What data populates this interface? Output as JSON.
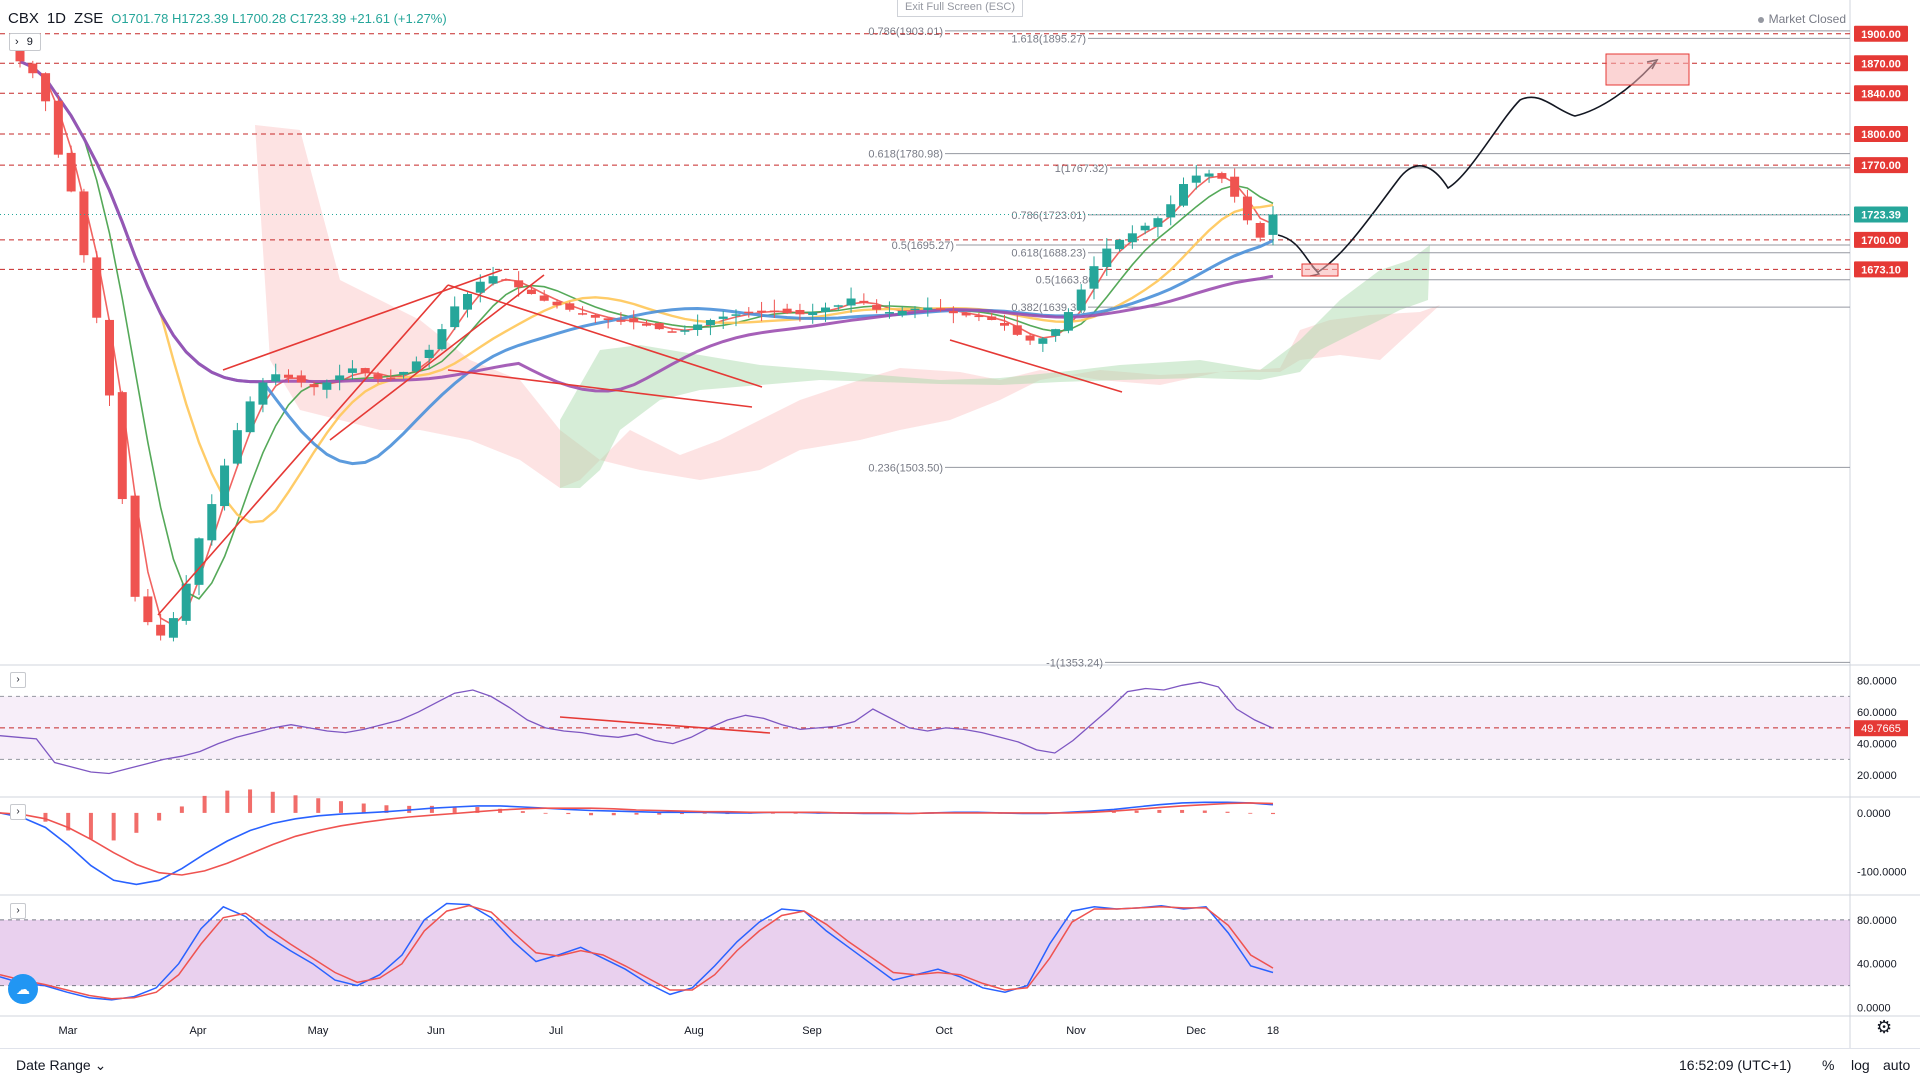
{
  "header": {
    "symbol": "CBX",
    "interval": "1D",
    "exchange": "ZSE",
    "open": "O1701.78",
    "high": "H1723.39",
    "low": "L1700.28",
    "close": "C1723.39",
    "change": "+21.61 (+1.27%)",
    "indicator_count": "9"
  },
  "exit_fullscreen": "Exit Full Screen (ESC)",
  "market_status": "Market Closed",
  "bottom": {
    "date_range": "Date Range",
    "clock": "16:52:09 (UTC+1)",
    "percent": "%",
    "log": "log",
    "auto": "auto"
  },
  "colors": {
    "up": "#26a69a",
    "down": "#ef5350",
    "ma_fast": "#ef5350",
    "ma_mid": "#43a047",
    "ma_slow": "#ffc658",
    "ma_100": "#4a90d9",
    "ma_200": "#9c4fb0",
    "price_label_red": "#e53935",
    "price_label_green": "#26a69a",
    "rsi": "#7e57c2",
    "macd": "#2962ff",
    "signal": "#ef5350",
    "stoch_k": "#2962ff",
    "stoch_d": "#ef5350"
  },
  "chart_data": [
    {
      "type": "candlestick",
      "title": "CBX 1D ZSE",
      "x_labels": [
        "Mar",
        "Apr",
        "May",
        "Jun",
        "Jul",
        "Aug",
        "Sep",
        "Oct",
        "Nov",
        "Dec",
        "18"
      ],
      "y_scale": "log",
      "ylim": [
        1355,
        1935
      ],
      "close_series": [
        1872,
        1860,
        1832,
        1780,
        1745,
        1686,
        1630,
        1563,
        1478,
        1402,
        1383,
        1373,
        1386,
        1412,
        1447,
        1474,
        1505,
        1534,
        1558,
        1574,
        1581,
        1578,
        1574,
        1570,
        1574,
        1580,
        1586,
        1582,
        1577,
        1578,
        1583,
        1592,
        1602,
        1620,
        1640,
        1651,
        1662,
        1667,
        1663,
        1657,
        1651,
        1645,
        1641,
        1637,
        1633,
        1630,
        1628,
        1627,
        1626,
        1623,
        1620,
        1618,
        1619,
        1624,
        1628,
        1631,
        1633,
        1635,
        1636,
        1636,
        1634,
        1633,
        1635,
        1639,
        1641,
        1647,
        1643,
        1637,
        1635,
        1636,
        1638,
        1639,
        1637,
        1634,
        1632,
        1631,
        1628,
        1623,
        1615,
        1610,
        1612,
        1620,
        1635,
        1655,
        1676,
        1692,
        1700,
        1706,
        1713,
        1720,
        1733,
        1752,
        1760,
        1762,
        1757,
        1740,
        1718,
        1702,
        1723.39
      ],
      "fib_levels": [
        {
          "label": "0.786(1903.01)",
          "value": 1903.01
        },
        {
          "label": "1.618(1895.27)",
          "value": 1895.27
        },
        {
          "label": "0.618(1780.98)",
          "value": 1780.98
        },
        {
          "label": "1(1767.32)",
          "value": 1767.32
        },
        {
          "label": "0.786(1723.01)",
          "value": 1723.01
        },
        {
          "label": "0.5(1695.27)",
          "value": 1695.27
        },
        {
          "label": "0.618(1688.23)",
          "value": 1688.23
        },
        {
          "label": "0.5(1663.80)",
          "value": 1663.8
        },
        {
          "label": "0.382(1639.37)",
          "value": 1639.37
        },
        {
          "label": "0.236(1503.50)",
          "value": 1503.5
        },
        {
          "label": "-1(1353.24)",
          "value": 1353.24
        }
      ],
      "horizontal_levels": [
        {
          "label": "1900.00",
          "value": 1900.0
        },
        {
          "label": "1870.00",
          "value": 1870.0
        },
        {
          "label": "1840.00",
          "value": 1840.0
        },
        {
          "label": "1800.00",
          "value": 1800.0
        },
        {
          "label": "1770.00",
          "value": 1770.0
        },
        {
          "label": "1700.00",
          "value": 1700.0
        },
        {
          "label": "1673.10",
          "value": 1673.1
        }
      ],
      "last_price": {
        "label": "1723.39",
        "value": 1723.39
      }
    },
    {
      "type": "line",
      "title": "RSI",
      "y_ticks": [
        "80.0000",
        "60.0000",
        "40.0000",
        "20.0000"
      ],
      "ylim": [
        8,
        88
      ],
      "band": [
        30,
        70
      ],
      "midline": 50,
      "last_value_label": "49.7665",
      "values": [
        45,
        44,
        43,
        28,
        25,
        22,
        21,
        24,
        27,
        30,
        32,
        35,
        40,
        44,
        47,
        50,
        52,
        50,
        48,
        47,
        49,
        52,
        55,
        60,
        66,
        72,
        74,
        70,
        63,
        55,
        50,
        48,
        47,
        45,
        44,
        46,
        42,
        40,
        44,
        50,
        55,
        58,
        56,
        52,
        49,
        50,
        51,
        54,
        62,
        56,
        50,
        48,
        50,
        49,
        47,
        44,
        41,
        36,
        34,
        42,
        52,
        62,
        73,
        75,
        74,
        77,
        79,
        76,
        62,
        55,
        49.77
      ]
    },
    {
      "type": "line",
      "title": "MACD",
      "y_ticks": [
        "0.0000",
        "-100.0000"
      ],
      "ylim": [
        -135,
        22
      ],
      "macd": [
        0,
        -8,
        -25,
        -55,
        -90,
        -115,
        -122,
        -115,
        -95,
        -70,
        -48,
        -30,
        -18,
        -10,
        -5,
        -2,
        0,
        2,
        5,
        8,
        10,
        12,
        12,
        10,
        8,
        6,
        4,
        3,
        2,
        1,
        1,
        1,
        0,
        0,
        1,
        1,
        0,
        0,
        -1,
        -1,
        -1,
        0,
        1,
        1,
        0,
        -1,
        -1,
        1,
        3,
        6,
        10,
        14,
        17,
        18,
        18,
        17,
        14
      ],
      "signal": [
        0,
        -3,
        -10,
        -25,
        -45,
        -68,
        -88,
        -102,
        -106,
        -99,
        -86,
        -70,
        -54,
        -40,
        -30,
        -22,
        -16,
        -11,
        -7,
        -4,
        -1,
        2,
        5,
        7,
        8,
        8,
        8,
        7,
        5,
        4,
        3,
        2,
        2,
        1,
        1,
        1,
        1,
        0,
        0,
        0,
        -1,
        0,
        0,
        0,
        0,
        0,
        0,
        0,
        1,
        3,
        6,
        9,
        12,
        14,
        16,
        17,
        16
      ],
      "histogram": [
        0,
        -5,
        -15,
        -30,
        -45,
        -47,
        -34,
        -13,
        11,
        29,
        38,
        40,
        36,
        30,
        25,
        20,
        16,
        13,
        12,
        12,
        11,
        10,
        7,
        3,
        0,
        -2,
        -4,
        -4,
        -3,
        -3,
        -2,
        -1,
        -2,
        -1,
        0,
        0,
        -1,
        0,
        -1,
        -1,
        0,
        0,
        1,
        1,
        0,
        -1,
        -1,
        1,
        2,
        3,
        4,
        5,
        5,
        4,
        2,
        0,
        -2
      ]
    },
    {
      "type": "line",
      "title": "Stochastic",
      "y_ticks": [
        "80.0000",
        "40.0000",
        "0.0000"
      ],
      "ylim": [
        -5,
        100
      ],
      "band": [
        20,
        80
      ],
      "k": [
        28,
        22,
        20,
        14,
        9,
        7,
        10,
        18,
        40,
        72,
        92,
        83,
        65,
        52,
        40,
        25,
        20,
        30,
        48,
        80,
        95,
        94,
        82,
        60,
        42,
        48,
        55,
        45,
        35,
        22,
        12,
        18,
        38,
        60,
        78,
        90,
        88,
        70,
        55,
        40,
        25,
        30,
        35,
        28,
        18,
        14,
        20,
        58,
        88,
        92,
        90,
        91,
        93,
        90,
        92,
        68,
        38,
        32
      ],
      "d": [
        30,
        25,
        21,
        16,
        11,
        8,
        9,
        14,
        30,
        58,
        82,
        86,
        72,
        58,
        45,
        32,
        23,
        27,
        40,
        70,
        88,
        93,
        87,
        68,
        50,
        47,
        52,
        48,
        38,
        27,
        16,
        16,
        30,
        52,
        70,
        84,
        88,
        76,
        60,
        46,
        32,
        30,
        32,
        30,
        22,
        16,
        18,
        45,
        78,
        90,
        90,
        91,
        92,
        91,
        91,
        75,
        48,
        36
      ]
    }
  ]
}
